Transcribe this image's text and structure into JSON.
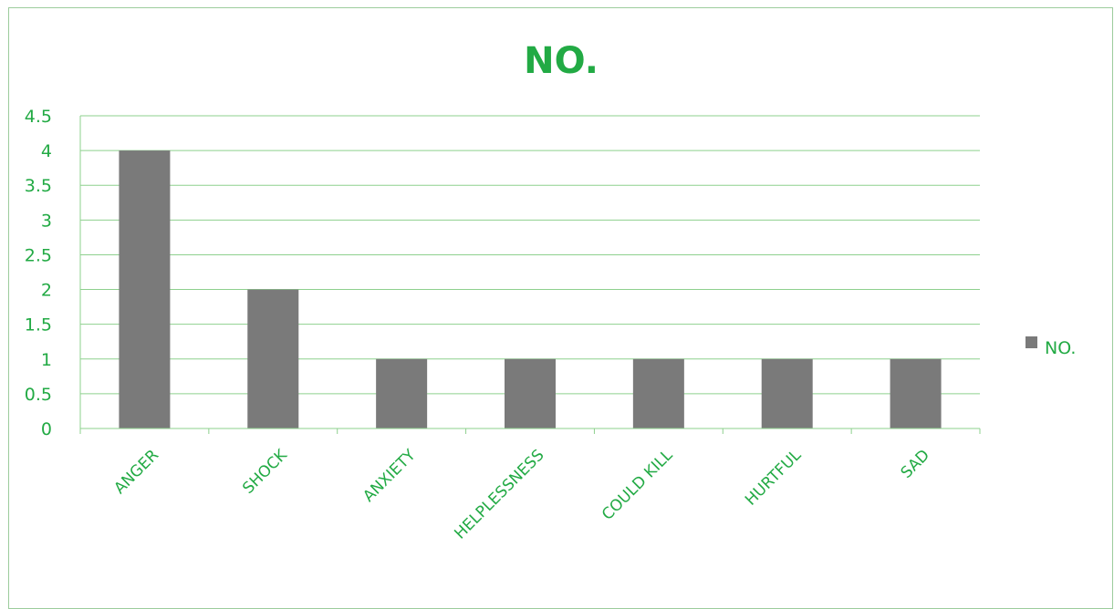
{
  "colors": {
    "bar": "#7a7a7a",
    "text": "#22aa44",
    "grid": "#8ed08e",
    "frame": "#9ccc9c"
  },
  "chart_data": {
    "type": "bar",
    "title": "NO.",
    "xlabel": "",
    "ylabel": "",
    "categories": [
      "ANGER",
      "SHOCK",
      "ANXIETY",
      "HELPLESSNESS",
      "COULD KILL",
      "HURTFUL",
      "SAD"
    ],
    "series": [
      {
        "name": "NO.",
        "values": [
          4,
          2,
          1,
          1,
          1,
          1,
          1
        ]
      }
    ],
    "ylim": [
      0,
      4.5
    ],
    "ytick_step": 0.5,
    "yticks": [
      "0",
      "0.5",
      "1",
      "1.5",
      "2",
      "2.5",
      "3",
      "3.5",
      "4",
      "4.5"
    ],
    "grid": true,
    "legend_position": "right"
  }
}
